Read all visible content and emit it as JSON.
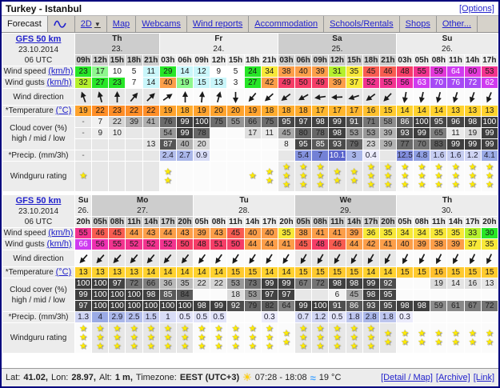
{
  "header": {
    "title": "Turkey - Istanbul",
    "options_label": "[Options]"
  },
  "tabs": [
    {
      "label": "Forecast",
      "active": true
    },
    {
      "label": "",
      "icon": "wave-graph-icon"
    },
    {
      "label": "2D",
      "icon": "dropdown-caret"
    },
    {
      "label": "Map"
    },
    {
      "label": "Webcams"
    },
    {
      "label": "Wind reports"
    },
    {
      "label": "Accommodation"
    },
    {
      "label": "Schools/Rentals"
    },
    {
      "label": "Shops"
    },
    {
      "label": "Other..."
    }
  ],
  "row_labels": {
    "wind_speed": "Wind speed",
    "wind_gusts": "Wind gusts",
    "speed_unit": "(km/h)",
    "wind_direction": "Wind direction",
    "temperature": "*Temperature",
    "temperature_unit": "(°C)",
    "cloud_line1": "Cloud cover (%)",
    "cloud_line2": "high / mid / low",
    "precip": "*Precip. (mm/3h)",
    "rating": "Windguru rating"
  },
  "tables": [
    {
      "model": "GFS 50 km",
      "init_date": "23.10.2014",
      "init_time": "06 UTC",
      "day_groups": [
        {
          "day": "Th",
          "date": "23.",
          "cols": 5,
          "shaded": true
        },
        {
          "day": "Fr",
          "date": "24.",
          "cols": 7,
          "shaded": false
        },
        {
          "day": "Sa",
          "date": "25.",
          "cols": 7,
          "shaded": true
        },
        {
          "day": "Su",
          "date": "26.",
          "cols": 6,
          "shaded": false
        }
      ],
      "hours": [
        "09h",
        "12h",
        "15h",
        "18h",
        "21h",
        "03h",
        "06h",
        "09h",
        "12h",
        "15h",
        "18h",
        "21h",
        "03h",
        "06h",
        "09h",
        "12h",
        "15h",
        "18h",
        "21h",
        "03h",
        "05h",
        "08h",
        "11h",
        "14h",
        "17h"
      ],
      "wind_speed": [
        23,
        17,
        10,
        5,
        11,
        29,
        14,
        12,
        9,
        5,
        24,
        34,
        38,
        40,
        39,
        31,
        35,
        45,
        46,
        48,
        55,
        59,
        64,
        60,
        53
      ],
      "wind_gusts": [
        32,
        27,
        23,
        7,
        14,
        40,
        19,
        15,
        13,
        3,
        27,
        42,
        49,
        50,
        49,
        39,
        37,
        52,
        55,
        56,
        63,
        70,
        76,
        72,
        62
      ],
      "wind_dir_deg": [
        -20,
        -15,
        0,
        40,
        45,
        55,
        0,
        5,
        15,
        180,
        220,
        228,
        233,
        240,
        262,
        268,
        252,
        233,
        224,
        190,
        193,
        195,
        198,
        200,
        203
      ],
      "temperature": [
        19,
        22,
        23,
        22,
        22,
        19,
        18,
        19,
        20,
        20,
        19,
        18,
        18,
        18,
        17,
        17,
        17,
        16,
        15,
        14,
        14,
        14,
        13,
        13,
        13
      ],
      "cloud_high": [
        "-",
        7,
        22,
        39,
        41,
        76,
        99,
        100,
        75,
        55,
        66,
        75,
        95,
        97,
        98,
        99,
        91,
        71,
        58,
        86,
        100,
        95,
        96,
        98,
        100
      ],
      "cloud_mid": [
        "-",
        9,
        10,
        "",
        "",
        54,
        99,
        78,
        "",
        "",
        17,
        11,
        45,
        80,
        78,
        98,
        53,
        53,
        39,
        93,
        99,
        65,
        11,
        19,
        99
      ],
      "cloud_low": [
        "",
        "",
        "",
        "",
        13,
        87,
        40,
        20,
        "",
        "",
        "",
        "",
        8,
        95,
        85,
        93,
        79,
        23,
        39,
        77,
        70,
        83,
        99,
        99,
        99
      ],
      "precip": [
        "-",
        "",
        "",
        "",
        "",
        2.4,
        2.7,
        0.9,
        "",
        "",
        "",
        "",
        "",
        5.4,
        7,
        10.1,
        3,
        0.4,
        "",
        12.5,
        4.8,
        1.6,
        1.6,
        1.2,
        4.1
      ],
      "rating": [
        1,
        0,
        0,
        0,
        0,
        2,
        0,
        0,
        0,
        0,
        1,
        2,
        3,
        3,
        3,
        2,
        2,
        3,
        3,
        3,
        3,
        3,
        3,
        3,
        3
      ]
    },
    {
      "model": "GFS 50 km",
      "init_date": "23.10.2014",
      "init_time": "06 UTC",
      "day_groups": [
        {
          "day": "Su",
          "date": "26.",
          "cols": 1,
          "shaded": false
        },
        {
          "day": "Mo",
          "date": "27.",
          "cols": 6,
          "shaded": true
        },
        {
          "day": "Tu",
          "date": "28.",
          "cols": 6,
          "shaded": false
        },
        {
          "day": "We",
          "date": "29.",
          "cols": 6,
          "shaded": true
        },
        {
          "day": "Th",
          "date": "30.",
          "cols": 6,
          "shaded": false
        }
      ],
      "hours": [
        "20h",
        "05h",
        "08h",
        "11h",
        "14h",
        "17h",
        "20h",
        "05h",
        "08h",
        "11h",
        "14h",
        "17h",
        "20h",
        "05h",
        "08h",
        "11h",
        "14h",
        "17h",
        "20h",
        "05h",
        "08h",
        "11h",
        "14h",
        "17h",
        "20h"
      ],
      "wind_speed": [
        55,
        46,
        45,
        44,
        43,
        44,
        43,
        39,
        43,
        45,
        40,
        40,
        35,
        38,
        41,
        41,
        39,
        36,
        35,
        34,
        34,
        35,
        35,
        33,
        30
      ],
      "wind_gusts": [
        66,
        56,
        55,
        52,
        52,
        52,
        50,
        48,
        51,
        50,
        44,
        44,
        41,
        45,
        48,
        46,
        44,
        42,
        41,
        40,
        39,
        38,
        39,
        37,
        35
      ],
      "wind_dir_deg": [
        222,
        222,
        222,
        220,
        220,
        220,
        218,
        216,
        215,
        213,
        213,
        212,
        212,
        210,
        210,
        210,
        210,
        210,
        208,
        207,
        207,
        207,
        207,
        206,
        205
      ],
      "temperature": [
        13,
        13,
        13,
        13,
        14,
        14,
        14,
        14,
        14,
        15,
        15,
        14,
        14,
        15,
        15,
        15,
        15,
        14,
        14,
        15,
        15,
        16,
        15,
        15,
        15
      ],
      "cloud_high": [
        100,
        100,
        97,
        72,
        66,
        36,
        35,
        22,
        22,
        53,
        73,
        99,
        99,
        67,
        72,
        98,
        98,
        99,
        92,
        "",
        "",
        19,
        14,
        16,
        13
      ],
      "cloud_mid": [
        99,
        100,
        100,
        100,
        98,
        85,
        84,
        "",
        "",
        18,
        53,
        97,
        97,
        "",
        "",
        6,
        45,
        98,
        95,
        "",
        "",
        "",
        "",
        "",
        ""
      ],
      "cloud_low": [
        97,
        100,
        100,
        100,
        100,
        100,
        100,
        98,
        99,
        92,
        79,
        82,
        64,
        99,
        100,
        91,
        86,
        93,
        95,
        98,
        98,
        59,
        61,
        67,
        72
      ],
      "precip": [
        1.3,
        4,
        2.9,
        2.5,
        1.5,
        1,
        0.5,
        0.5,
        0.5,
        "",
        "",
        0.3,
        "",
        0.7,
        1.2,
        0.5,
        1.8,
        2.8,
        1.8,
        0.3,
        "",
        "",
        "",
        "",
        ""
      ],
      "rating": [
        3,
        3,
        3,
        3,
        3,
        3,
        3,
        3,
        3,
        3,
        3,
        3,
        2,
        3,
        3,
        3,
        3,
        3,
        2,
        2,
        2,
        2,
        2,
        2,
        2
      ]
    }
  ],
  "status": {
    "lat_label": "Lat:",
    "lat_value": "41.02,",
    "lon_label": "Lon:",
    "lon_value": "28.97,",
    "alt_label": "Alt:",
    "alt_value": "1 m,",
    "tz_label": "Timezone:",
    "tz_value": "EEST (UTC+3)",
    "sun_times": "07:28 - 18:08",
    "water_temp": "19 °C",
    "links": [
      {
        "label": "[Detail / Map]"
      },
      {
        "label": "[Archive]"
      },
      {
        "label": "[Link]"
      }
    ]
  },
  "colors": {
    "window_border": "#00007d",
    "link_blue": "#2222cc",
    "star_yellow": "#ffec00",
    "header_shaded": "#cdcdcd",
    "header_plain": "#ececec",
    "body_shaded": "#e7e7e7",
    "body_plain": "#fbfbfb"
  },
  "color_scales": {
    "wind": [
      [
        10,
        "#ffffff"
      ],
      [
        16,
        "#c9f6fa"
      ],
      [
        21,
        "#8ef88e"
      ],
      [
        30,
        "#27e627"
      ],
      [
        33,
        "#b5f02d"
      ],
      [
        37,
        "#f7e838"
      ],
      [
        44,
        "#fc9e49"
      ],
      [
        47,
        "#f85c51"
      ],
      [
        51,
        "#f53d67"
      ],
      [
        55,
        "#f2338f"
      ],
      [
        58,
        "#ee2fb1"
      ],
      [
        61,
        "#e238d8"
      ],
      [
        67,
        "#cf3cf0"
      ],
      [
        99,
        "#a64af5"
      ]
    ],
    "temp": [
      [
        12,
        "#ffe838"
      ],
      [
        14,
        "#ffd22e"
      ],
      [
        15,
        "#ffca2e"
      ],
      [
        16,
        "#ffc02e"
      ],
      [
        17,
        "#ffb62e"
      ],
      [
        18,
        "#ffac2e"
      ],
      [
        20,
        "#ffa32e"
      ],
      [
        25,
        "#ff8e28"
      ]
    ],
    "precip": [
      [
        0.4,
        "#ebebfb"
      ],
      [
        0.6,
        "#e2e4f9"
      ],
      [
        1,
        "#d8dcf6"
      ],
      [
        1.4,
        "#cfd4f3"
      ],
      [
        1.7,
        "#c6cdf1"
      ],
      [
        2,
        "#bdc5ee"
      ],
      [
        2.6,
        "#b3beec"
      ],
      [
        3.1,
        "#a9b6e9"
      ],
      [
        4.2,
        "#9aaae5"
      ],
      [
        5,
        "#8f9fe2"
      ],
      [
        6,
        "#8492dd"
      ],
      [
        8,
        "#7381d6"
      ],
      [
        11,
        "#5a64cc"
      ],
      [
        99,
        "#828ede"
      ]
    ]
  }
}
